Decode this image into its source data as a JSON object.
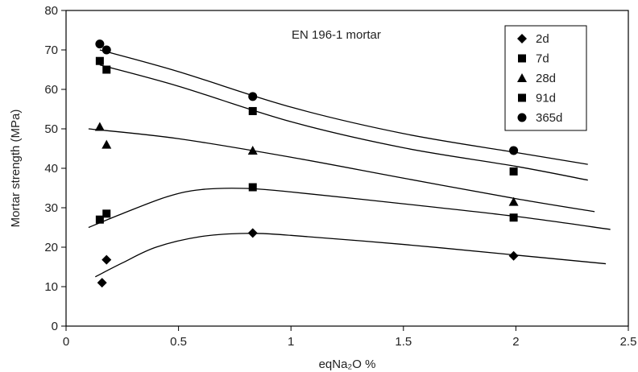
{
  "chart_data": {
    "type": "scatter",
    "annotation": "EN 196-1 mortar",
    "xlabel": "eqNa₂O %",
    "ylabel": "Mortar strength (MPa)",
    "xlim": [
      0,
      2.5
    ],
    "ylim": [
      0,
      80
    ],
    "xticks": [
      0,
      0.5,
      1,
      1.5,
      2,
      2.5
    ],
    "xtick_labels": [
      "0",
      "0.5",
      "1",
      "1.5",
      "2",
      "2.5"
    ],
    "yticks": [
      0,
      10,
      20,
      30,
      40,
      50,
      60,
      70,
      80
    ],
    "ytick_labels": [
      "0",
      "10",
      "20",
      "30",
      "40",
      "50",
      "60",
      "70",
      "80"
    ],
    "grid": false,
    "legend_position": "top-right",
    "series": [
      {
        "name": "2d",
        "marker": "diamond",
        "points": [
          [
            0.16,
            11.0
          ],
          [
            0.18,
            16.8
          ],
          [
            0.83,
            23.6
          ],
          [
            1.99,
            17.8
          ]
        ],
        "trend": [
          [
            0.13,
            12.5
          ],
          [
            0.25,
            16.0
          ],
          [
            0.4,
            20.0
          ],
          [
            0.6,
            22.7
          ],
          [
            0.8,
            23.5
          ],
          [
            1.0,
            23.0
          ],
          [
            1.5,
            20.7
          ],
          [
            2.0,
            18.0
          ],
          [
            2.4,
            15.8
          ]
        ]
      },
      {
        "name": "7d",
        "marker": "square",
        "points": [
          [
            0.15,
            27.0
          ],
          [
            0.18,
            28.5
          ],
          [
            0.83,
            35.2
          ],
          [
            1.99,
            27.5
          ]
        ],
        "trend": [
          [
            0.1,
            25.0
          ],
          [
            0.25,
            28.5
          ],
          [
            0.45,
            32.8
          ],
          [
            0.6,
            34.6
          ],
          [
            0.8,
            34.9
          ],
          [
            1.0,
            34.0
          ],
          [
            1.5,
            31.0
          ],
          [
            2.0,
            27.8
          ],
          [
            2.42,
            24.5
          ]
        ]
      },
      {
        "name": "28d",
        "marker": "triangle",
        "points": [
          [
            0.15,
            50.5
          ],
          [
            0.18,
            46.0
          ],
          [
            0.83,
            44.5
          ],
          [
            1.99,
            31.5
          ]
        ],
        "trend": [
          [
            0.1,
            50.0
          ],
          [
            0.5,
            47.5
          ],
          [
            1.0,
            42.8
          ],
          [
            1.5,
            37.5
          ],
          [
            2.0,
            32.3
          ],
          [
            2.35,
            29.0
          ]
        ]
      },
      {
        "name": "91d",
        "marker": "square",
        "points": [
          [
            0.15,
            67.2
          ],
          [
            0.18,
            65.0
          ],
          [
            0.83,
            54.5
          ],
          [
            1.99,
            39.2
          ]
        ],
        "trend": [
          [
            0.15,
            66.2
          ],
          [
            0.5,
            60.8
          ],
          [
            1.0,
            51.8
          ],
          [
            1.5,
            45.2
          ],
          [
            2.0,
            40.5
          ],
          [
            2.32,
            37.0
          ]
        ]
      },
      {
        "name": "365d",
        "marker": "circle",
        "points": [
          [
            0.15,
            71.5
          ],
          [
            0.18,
            70.0
          ],
          [
            0.83,
            58.2
          ],
          [
            1.99,
            44.5
          ]
        ],
        "trend": [
          [
            0.15,
            70.0
          ],
          [
            0.5,
            64.5
          ],
          [
            1.0,
            55.5
          ],
          [
            1.5,
            48.8
          ],
          [
            2.0,
            44.0
          ],
          [
            2.32,
            41.0
          ]
        ]
      }
    ]
  }
}
